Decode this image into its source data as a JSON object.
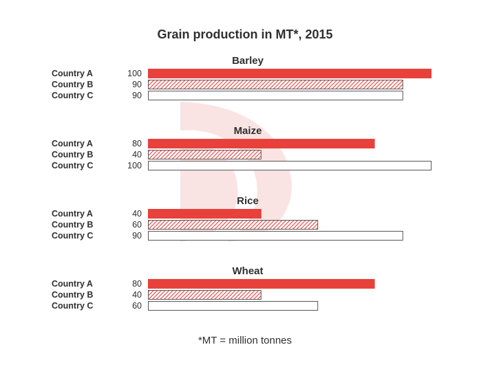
{
  "chart_data": {
    "type": "bar",
    "orientation": "horizontal",
    "title": "Grain production in MT*, 2015",
    "footnote": "*MT = million tonnes",
    "xlim": [
      0,
      100
    ],
    "grid": false,
    "legend": "none",
    "colors": {
      "Country A": "#e8403a",
      "Country B": "#e8403a",
      "Country C": "#ffffff",
      "outline": "#555555",
      "watermark": "#f7e1e0"
    },
    "fill_styles": {
      "Country A": "solid",
      "Country B": "hatched",
      "Country C": "empty"
    },
    "groups": [
      {
        "name": "Barley",
        "categories": [
          "Country A",
          "Country B",
          "Country C"
        ],
        "values": [
          100,
          90,
          90
        ]
      },
      {
        "name": "Maize",
        "categories": [
          "Country A",
          "Country B",
          "Country C"
        ],
        "values": [
          80,
          40,
          100
        ]
      },
      {
        "name": "Rice",
        "categories": [
          "Country A",
          "Country B",
          "Country C"
        ],
        "values": [
          40,
          60,
          90
        ]
      },
      {
        "name": "Wheat",
        "categories": [
          "Country A",
          "Country B",
          "Country C"
        ],
        "values": [
          80,
          40,
          60
        ]
      }
    ]
  }
}
